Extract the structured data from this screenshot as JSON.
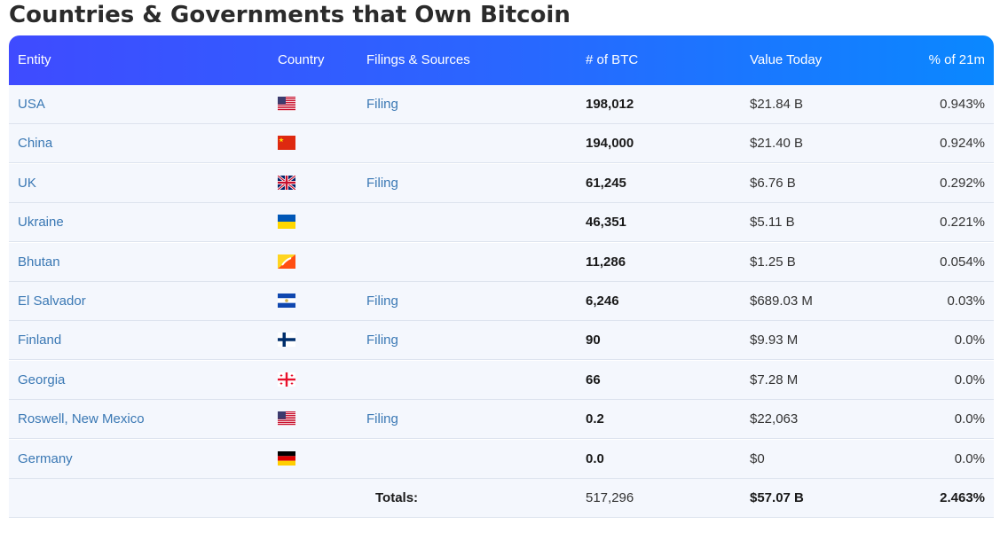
{
  "title": "Countries & Governments that Own Bitcoin",
  "header": {
    "entity": "Entity",
    "country": "Country",
    "filings": "Filings & Sources",
    "btc": "# of BTC",
    "value": "Value Today",
    "pct": "% of 21m"
  },
  "rows": [
    {
      "entity": "USA",
      "flag": "us-flag-icon",
      "filing": "Filing",
      "btc": "198,012",
      "value": "$21.84 B",
      "pct": "0.943%"
    },
    {
      "entity": "China",
      "flag": "cn-flag-icon",
      "filing": "",
      "btc": "194,000",
      "value": "$21.40 B",
      "pct": "0.924%"
    },
    {
      "entity": "UK",
      "flag": "gb-flag-icon",
      "filing": "Filing",
      "btc": "61,245",
      "value": "$6.76 B",
      "pct": "0.292%"
    },
    {
      "entity": "Ukraine",
      "flag": "ua-flag-icon",
      "filing": "",
      "btc": "46,351",
      "value": "$5.11 B",
      "pct": "0.221%"
    },
    {
      "entity": "Bhutan",
      "flag": "bt-flag-icon",
      "filing": "",
      "btc": "11,286",
      "value": "$1.25 B",
      "pct": "0.054%"
    },
    {
      "entity": "El Salvador",
      "flag": "sv-flag-icon",
      "filing": "Filing",
      "btc": "6,246",
      "value": "$689.03 M",
      "pct": "0.03%"
    },
    {
      "entity": "Finland",
      "flag": "fi-flag-icon",
      "filing": "Filing",
      "btc": "90",
      "value": "$9.93 M",
      "pct": "0.0%"
    },
    {
      "entity": "Georgia",
      "flag": "ge-flag-icon",
      "filing": "",
      "btc": "66",
      "value": "$7.28 M",
      "pct": "0.0%"
    },
    {
      "entity": "Roswell, New Mexico",
      "flag": "us-flag-icon",
      "filing": "Filing",
      "btc": "0.2",
      "value": "$22,063",
      "pct": "0.0%"
    },
    {
      "entity": "Germany",
      "flag": "de-flag-icon",
      "filing": "",
      "btc": "0.0",
      "value": "$0",
      "pct": "0.0%"
    }
  ],
  "totals": {
    "label": "Totals:",
    "btc": "517,296",
    "value": "$57.07 B",
    "pct": "2.463%"
  },
  "colors": {
    "header_start": "#3f4bff",
    "header_end": "#0a88ff",
    "link": "#3a78b4",
    "row_bg": "#f4f7fd"
  }
}
